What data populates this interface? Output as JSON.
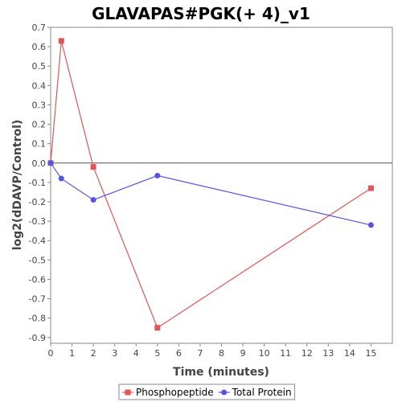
{
  "chart_data": {
    "type": "line",
    "title": "GLAVAPAS#PGK(+ 4)_v1",
    "xlabel": "Time (minutes)",
    "ylabel": "log2(dDAVP/Control)",
    "xlim": [
      0,
      16
    ],
    "ylim": [
      -0.93,
      0.7
    ],
    "x_ticks": [
      0,
      1,
      2,
      3,
      4,
      5,
      6,
      7,
      8,
      9,
      10,
      11,
      12,
      13,
      14,
      15
    ],
    "y_ticks": [
      0.7,
      0.6,
      0.5,
      0.4,
      0.3,
      0.2,
      0.1,
      0.0,
      -0.1,
      -0.2,
      -0.3,
      -0.4,
      -0.5,
      -0.6,
      -0.7,
      -0.8,
      -0.9
    ],
    "zero_line": true,
    "grid": false,
    "legend_position": "bottom",
    "series": [
      {
        "name": "Phosphopeptide",
        "color": "#e05555",
        "marker": "square",
        "x": [
          0,
          0.5,
          2,
          5,
          15
        ],
        "y": [
          0.0,
          0.63,
          -0.02,
          -0.85,
          -0.13
        ]
      },
      {
        "name": "Total Protein",
        "color": "#5555e0",
        "marker": "circle",
        "x": [
          0,
          0.5,
          2,
          5,
          15
        ],
        "y": [
          0.0,
          -0.08,
          -0.19,
          -0.065,
          -0.32
        ]
      }
    ]
  }
}
